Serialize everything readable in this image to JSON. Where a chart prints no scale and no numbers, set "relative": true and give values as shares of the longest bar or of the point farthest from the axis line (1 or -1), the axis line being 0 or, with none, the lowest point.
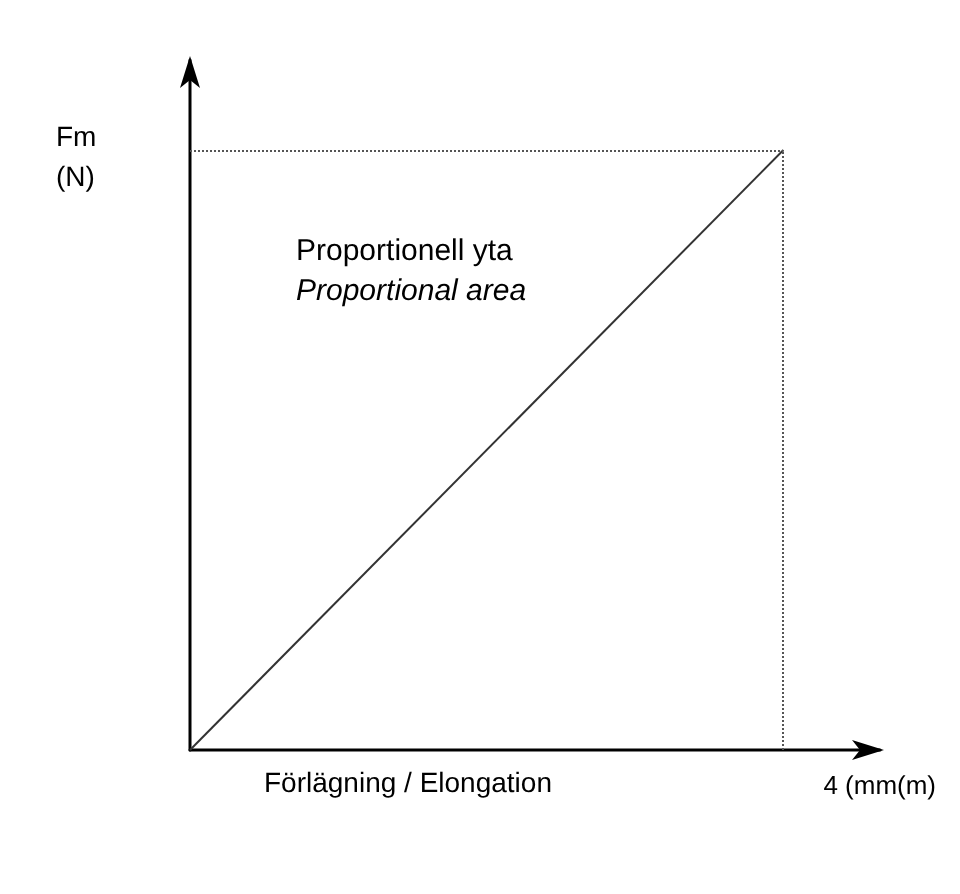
{
  "chart_data": {
    "type": "line",
    "relative": true,
    "xlabel": "Förlägning / Elongation",
    "ylabel": "Fm\n(N)",
    "categories": [
      null,
      null
    ],
    "series": [
      {
        "color": "#333333",
        "values": [
          0,
          1
        ]
      }
    ],
    "ref_lines": [
      {
        "axis": "x",
        "label": "4 (mm(m)",
        "line_style": "dotted",
        "color": "#555555"
      },
      {
        "axis": "y",
        "value": 1,
        "line_style": "dotted",
        "color": "#555555"
      }
    ],
    "annotations": [
      "Proportionell yta",
      "Proportional area"
    ],
    "marker": "none",
    "line_style": "solid"
  }
}
